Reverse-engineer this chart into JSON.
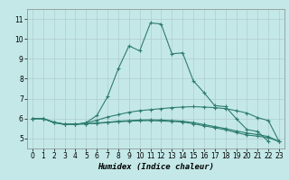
{
  "xlabel": "Humidex (Indice chaleur)",
  "xlim": [
    -0.5,
    23.5
  ],
  "ylim": [
    4.5,
    11.5
  ],
  "yticks": [
    5,
    6,
    7,
    8,
    9,
    10,
    11
  ],
  "xticks": [
    0,
    1,
    2,
    3,
    4,
    5,
    6,
    7,
    8,
    9,
    10,
    11,
    12,
    13,
    14,
    15,
    16,
    17,
    18,
    19,
    20,
    21,
    22,
    23
  ],
  "background_color": "#c4e8e8",
  "grid_color": "#b0cccc",
  "line_color": "#2e7d6e",
  "lines": [
    {
      "x": [
        0,
        1,
        2,
        3,
        4,
        5,
        6,
        7,
        8,
        9,
        10,
        11,
        12,
        13,
        14,
        15,
        16,
        17,
        18,
        19,
        20,
        21,
        22
      ],
      "y": [
        6.0,
        6.0,
        5.8,
        5.7,
        5.7,
        5.8,
        6.15,
        7.1,
        8.5,
        9.65,
        9.4,
        10.8,
        10.75,
        9.25,
        9.3,
        7.9,
        7.3,
        6.65,
        6.6,
        6.0,
        5.45,
        5.35,
        4.85
      ]
    },
    {
      "x": [
        0,
        1,
        2,
        3,
        4,
        5,
        6,
        7,
        8,
        9,
        10,
        11,
        12,
        13,
        14,
        15,
        16,
        17,
        18,
        19,
        20,
        21,
        22,
        23
      ],
      "y": [
        6.0,
        6.0,
        5.8,
        5.72,
        5.72,
        5.78,
        5.92,
        6.08,
        6.2,
        6.32,
        6.4,
        6.45,
        6.5,
        6.55,
        6.58,
        6.6,
        6.58,
        6.55,
        6.5,
        6.4,
        6.28,
        6.05,
        5.9,
        4.85
      ]
    },
    {
      "x": [
        0,
        1,
        2,
        3,
        4,
        5,
        6,
        7,
        8,
        9,
        10,
        11,
        12,
        13,
        14,
        15,
        16,
        17,
        18,
        19,
        20,
        21,
        22,
        23
      ],
      "y": [
        6.0,
        6.0,
        5.82,
        5.72,
        5.72,
        5.74,
        5.78,
        5.82,
        5.87,
        5.9,
        5.93,
        5.94,
        5.93,
        5.9,
        5.87,
        5.8,
        5.7,
        5.6,
        5.5,
        5.38,
        5.28,
        5.2,
        5.1,
        4.85
      ]
    },
    {
      "x": [
        0,
        1,
        2,
        3,
        4,
        5,
        6,
        7,
        8,
        9,
        10,
        11,
        12,
        13,
        14,
        15,
        16,
        17,
        18,
        19,
        20,
        21,
        22,
        23
      ],
      "y": [
        6.0,
        6.0,
        5.82,
        5.72,
        5.72,
        5.74,
        5.76,
        5.8,
        5.84,
        5.87,
        5.89,
        5.9,
        5.88,
        5.86,
        5.83,
        5.74,
        5.64,
        5.54,
        5.44,
        5.3,
        5.18,
        5.12,
        5.04,
        4.85
      ]
    }
  ]
}
